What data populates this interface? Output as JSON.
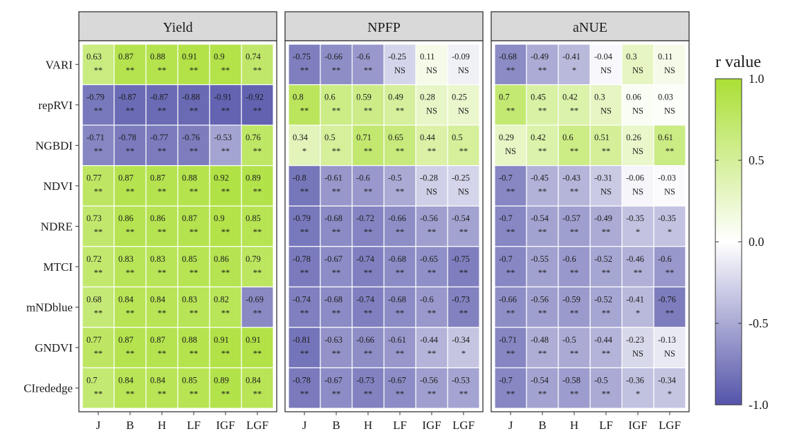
{
  "chart_data": {
    "type": "heatmap",
    "rows": [
      "VARI",
      "repRVI",
      "NGBDI",
      "NDVI",
      "NDRE",
      "MTCI",
      "mNDblue",
      "GNDVI",
      "CIrededge"
    ],
    "columns": [
      "J",
      "B",
      "H",
      "LF",
      "IGF",
      "LGF"
    ],
    "panels": [
      {
        "title": "Yield",
        "values": [
          [
            "0.63",
            "0.87",
            "0.88",
            "0.91",
            "0.9",
            "0.74"
          ],
          [
            "-0.79",
            "-0.87",
            "-0.87",
            "-0.88",
            "-0.91",
            "-0.92"
          ],
          [
            "-0.71",
            "-0.78",
            "-0.77",
            "-0.76",
            "-0.53",
            "0.76"
          ],
          [
            "0.77",
            "0.87",
            "0.87",
            "0.88",
            "0.92",
            "0.89"
          ],
          [
            "0.73",
            "0.86",
            "0.86",
            "0.87",
            "0.9",
            "0.85"
          ],
          [
            "0.72",
            "0.83",
            "0.83",
            "0.85",
            "0.86",
            "0.79"
          ],
          [
            "0.68",
            "0.84",
            "0.84",
            "0.83",
            "0.82",
            "-0.69"
          ],
          [
            "0.77",
            "0.87",
            "0.87",
            "0.88",
            "0.91",
            "0.91"
          ],
          [
            "0.7",
            "0.84",
            "0.84",
            "0.85",
            "0.89",
            "0.84"
          ]
        ],
        "significance": [
          [
            "**",
            "**",
            "**",
            "**",
            "**",
            "**"
          ],
          [
            "**",
            "**",
            "**",
            "**",
            "**",
            "**"
          ],
          [
            "**",
            "**",
            "**",
            "**",
            "**",
            "**"
          ],
          [
            "**",
            "**",
            "**",
            "**",
            "**",
            "**"
          ],
          [
            "**",
            "**",
            "**",
            "**",
            "**",
            "**"
          ],
          [
            "**",
            "**",
            "**",
            "**",
            "**",
            "**"
          ],
          [
            "**",
            "**",
            "**",
            "**",
            "**",
            "**"
          ],
          [
            "**",
            "**",
            "**",
            "**",
            "**",
            "**"
          ],
          [
            "**",
            "**",
            "**",
            "**",
            "**",
            "**"
          ]
        ]
      },
      {
        "title": "NPFP",
        "values": [
          [
            "-0.75",
            "-0.66",
            "-0.6",
            "-0.25",
            "0.11",
            "-0.09"
          ],
          [
            "0.8",
            "0.6",
            "0.59",
            "0.49",
            "0.28",
            "0.25"
          ],
          [
            "0.34",
            "0.5",
            "0.71",
            "0.65",
            "0.44",
            "0.5"
          ],
          [
            "-0.8",
            "-0.61",
            "-0.6",
            "-0.5",
            "-0.28",
            "-0.25"
          ],
          [
            "-0.79",
            "-0.68",
            "-0.72",
            "-0.66",
            "-0.56",
            "-0.54"
          ],
          [
            "-0.78",
            "-0.67",
            "-0.74",
            "-0.68",
            "-0.65",
            "-0.75"
          ],
          [
            "-0.74",
            "-0.68",
            "-0.74",
            "-0.68",
            "-0.6",
            "-0.73"
          ],
          [
            "-0.81",
            "-0.63",
            "-0.66",
            "-0.61",
            "-0.44",
            "-0.34"
          ],
          [
            "-0.78",
            "-0.67",
            "-0.73",
            "-0.67",
            "-0.56",
            "-0.53"
          ]
        ],
        "significance": [
          [
            "**",
            "**",
            "**",
            "NS",
            "NS",
            "NS"
          ],
          [
            "**",
            "**",
            "**",
            "**",
            "NS",
            "NS"
          ],
          [
            "*",
            "**",
            "**",
            "**",
            "**",
            "**"
          ],
          [
            "**",
            "**",
            "**",
            "**",
            "NS",
            "NS"
          ],
          [
            "**",
            "**",
            "**",
            "**",
            "**",
            "**"
          ],
          [
            "**",
            "**",
            "**",
            "**",
            "**",
            "**"
          ],
          [
            "**",
            "**",
            "**",
            "**",
            "**",
            "**"
          ],
          [
            "**",
            "**",
            "**",
            "**",
            "**",
            "*"
          ],
          [
            "**",
            "**",
            "**",
            "**",
            "**",
            "**"
          ]
        ]
      },
      {
        "title": "aNUE",
        "values": [
          [
            "-0.68",
            "-0.49",
            "-0.41",
            "-0.04",
            "0.3",
            "0.11"
          ],
          [
            "0.7",
            "0.45",
            "0.42",
            "0.3",
            "0.06",
            "0.03"
          ],
          [
            "0.29",
            "0.42",
            "0.6",
            "0.51",
            "0.26",
            "0.61"
          ],
          [
            "-0.7",
            "-0.45",
            "-0.43",
            "-0.31",
            "-0.06",
            "-0.03"
          ],
          [
            "-0.7",
            "-0.54",
            "-0.57",
            "-0.49",
            "-0.35",
            "-0.35"
          ],
          [
            "-0.7",
            "-0.55",
            "-0.6",
            "-0.52",
            "-0.46",
            "-0.6"
          ],
          [
            "-0.66",
            "-0.56",
            "-0.59",
            "-0.52",
            "-0.41",
            "-0.76"
          ],
          [
            "-0.71",
            "-0.48",
            "-0.5",
            "-0.44",
            "-0.23",
            "-0.13"
          ],
          [
            "-0.7",
            "-0.54",
            "-0.58",
            "-0.5",
            "-0.36",
            "-0.34"
          ]
        ],
        "significance": [
          [
            "**",
            "**",
            "*",
            "NS",
            "NS",
            "NS"
          ],
          [
            "**",
            "**",
            "**",
            "NS",
            "NS",
            "NS"
          ],
          [
            "NS",
            "**",
            "**",
            "**",
            "NS",
            "**"
          ],
          [
            "**",
            "**",
            "**",
            "NS",
            "NS",
            "NS"
          ],
          [
            "**",
            "**",
            "**",
            "**",
            "*",
            "*"
          ],
          [
            "**",
            "**",
            "**",
            "**",
            "**",
            "**"
          ],
          [
            "**",
            "**",
            "**",
            "**",
            "*",
            "**"
          ],
          [
            "**",
            "**",
            "**",
            "**",
            "NS",
            "NS"
          ],
          [
            "**",
            "**",
            "**",
            "**",
            "*",
            "*"
          ]
        ]
      }
    ],
    "legend": {
      "title": "r value",
      "ticks": [
        "1.0",
        "0.5",
        "0.0",
        "-0.5",
        "-1.0"
      ],
      "range": [
        -1,
        1
      ]
    },
    "colors": {
      "negative": "#5454aa",
      "zero": "#ffffff",
      "positive": "#aadf35",
      "panel_header": "#d9d9d9",
      "border": "#333333"
    }
  }
}
